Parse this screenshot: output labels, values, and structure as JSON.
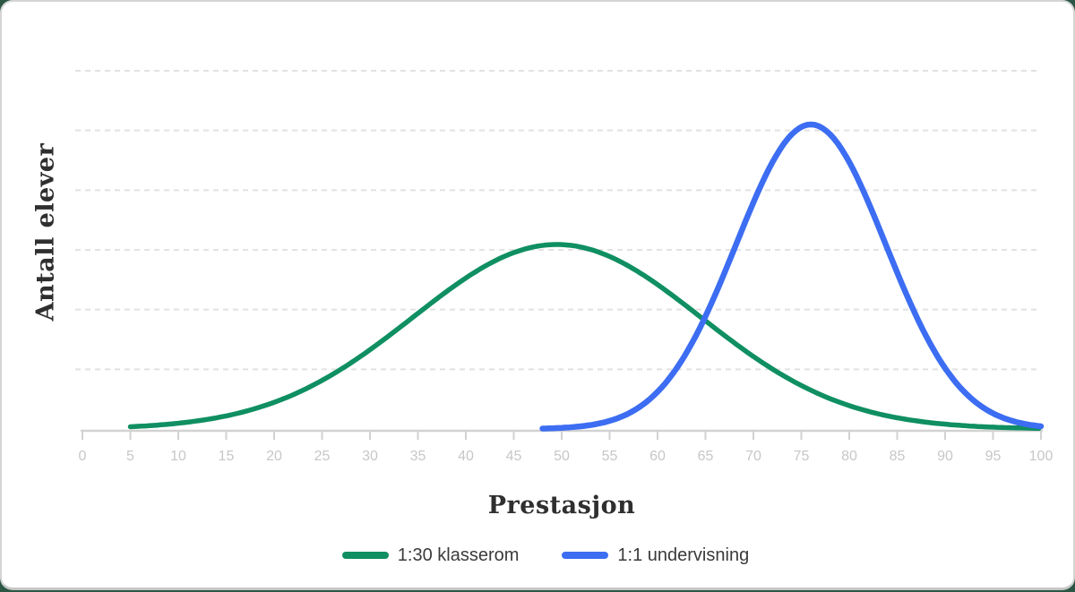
{
  "card": {
    "background": "#ffffff",
    "border_color": "#d5d5d5",
    "backdrop_color": "#2c5745"
  },
  "axis_style": {
    "grid_color": "#e2e2e2",
    "axis_color": "#d2d2d2",
    "tick_label_color": "#c7c7c7"
  },
  "chart_data": {
    "type": "line",
    "title": "",
    "xlabel": "Prestasjon",
    "ylabel": "Antall elever",
    "xlim": [
      0,
      100
    ],
    "x_ticks": [
      0,
      5,
      10,
      15,
      20,
      25,
      30,
      35,
      40,
      45,
      50,
      55,
      60,
      65,
      70,
      75,
      80,
      85,
      90,
      95,
      100
    ],
    "y_tick_labels": [],
    "grid": "horizontal-dashed",
    "grid_line_count": 6,
    "legend_position": "bottom",
    "series": [
      {
        "name": "1:30 klasserom",
        "color": "#0f8f62",
        "distribution": "normal",
        "mean": 49.5,
        "sd": 15,
        "peak_rel": 0.515,
        "x_domain": [
          5,
          100
        ],
        "x": [
          5,
          10,
          15,
          20,
          25,
          30,
          35,
          40,
          45,
          50,
          55,
          60,
          65,
          70,
          75,
          80,
          85,
          90,
          95,
          100
        ],
        "y": [
          0.006,
          0.016,
          0.037,
          0.074,
          0.136,
          0.221,
          0.323,
          0.421,
          0.492,
          0.515,
          0.482,
          0.403,
          0.302,
          0.202,
          0.121,
          0.065,
          0.031,
          0.013,
          0.005,
          0.002
        ]
      },
      {
        "name": "1:1 undervisning",
        "color": "#3c6df2",
        "distribution": "normal",
        "mean": 76,
        "sd": 7.8,
        "peak_rel": 0.85,
        "x_domain": [
          48,
          100
        ],
        "x": [
          50,
          55,
          60,
          65,
          70,
          75,
          80,
          85,
          90,
          95,
          100
        ],
        "y": [
          0.003,
          0.023,
          0.104,
          0.315,
          0.632,
          0.843,
          0.745,
          0.437,
          0.17,
          0.044,
          0.008
        ]
      }
    ]
  }
}
